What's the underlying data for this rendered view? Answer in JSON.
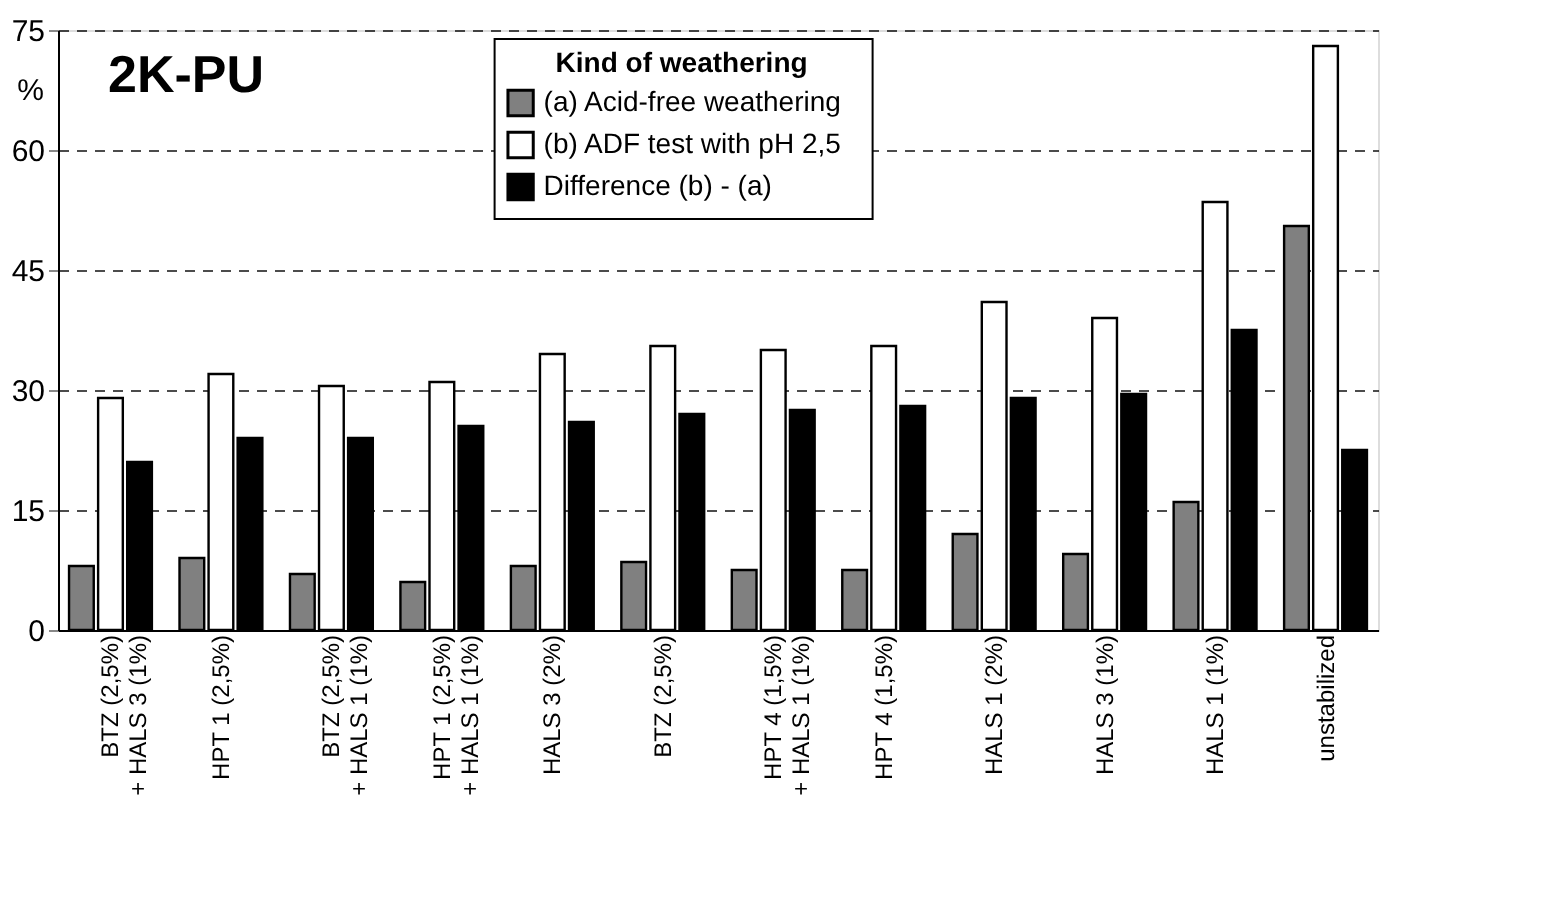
{
  "chart_data": {
    "type": "bar",
    "title": "2K-PU",
    "ylabel": "%",
    "legend_title": "Kind of weathering",
    "categories": [
      "BTZ (2,5%)\n+ HALS 3 (1%)",
      "HPT 1 (2,5%)",
      "BTZ (2,5%)\n+ HALS 1 (1%)",
      "HPT 1 (2,5%)\n+ HALS 1 (1%)",
      "HALS 3 (2%)",
      "BTZ (2,5%)",
      "HPT 4 (1,5%)\n+ HALS 1 (1%)",
      "HPT 4 (1,5%)",
      "HALS 1 (2%)",
      "HALS 3 (1%)",
      "HALS 1 (1%)",
      "unstabilized"
    ],
    "series": [
      {
        "name": "(a)  Acid-free weathering",
        "color": "#808080",
        "values": [
          8,
          9,
          7,
          6,
          8,
          8.5,
          7.5,
          7.5,
          12,
          9.5,
          16,
          50.5
        ]
      },
      {
        "name": "(b)  ADF test  with pH 2,5",
        "color": "#ffffff",
        "values": [
          29,
          32,
          30.5,
          31,
          34.5,
          35.5,
          35,
          35.5,
          41,
          39,
          53.5,
          73
        ]
      },
      {
        "name": "Difference   (b) - (a)",
        "color": "#000000",
        "values": [
          21,
          24,
          24,
          25.5,
          26,
          27,
          27.5,
          28,
          29,
          29.5,
          37.5,
          22.5
        ]
      }
    ],
    "ylim": [
      0,
      75
    ],
    "yticks": [
      0,
      15,
      30,
      45,
      60,
      75
    ],
    "grid": "y",
    "legend": "top"
  }
}
